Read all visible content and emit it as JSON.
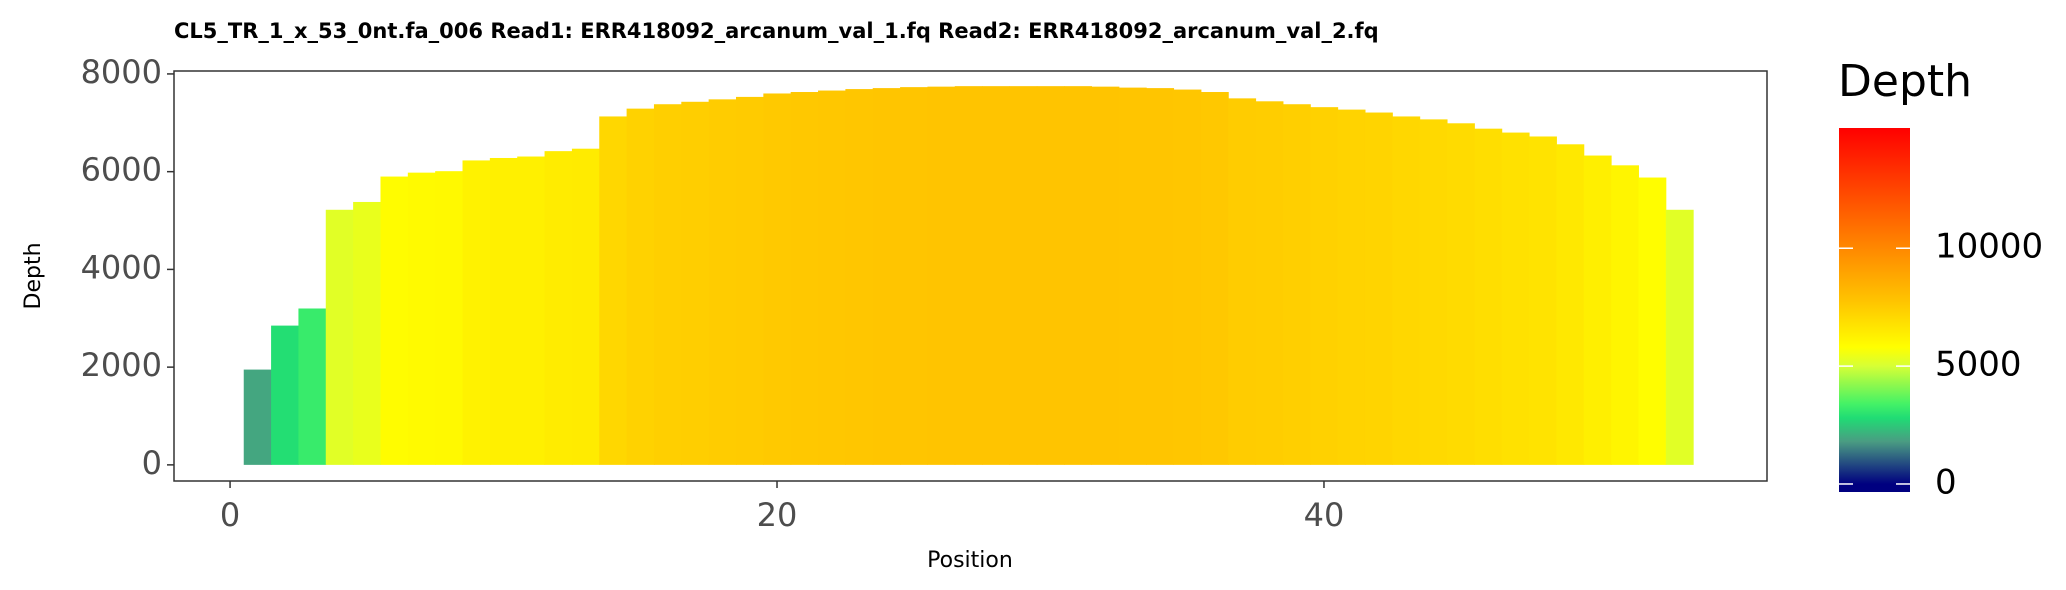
{
  "chart_data": {
    "type": "bar",
    "title": "CL5_TR_1_x_53_0nt.fa_006   Read1: ERR418092_arcanum_val_1.fq   Read2: ERR418092_arcanum_val_2.fq",
    "xlabel": "Position",
    "ylabel": "Depth",
    "x": [
      1,
      2,
      3,
      4,
      5,
      6,
      7,
      8,
      9,
      10,
      11,
      12,
      13,
      14,
      15,
      16,
      17,
      18,
      19,
      20,
      21,
      22,
      23,
      24,
      25,
      26,
      27,
      28,
      29,
      30,
      31,
      32,
      33,
      34,
      35,
      36,
      37,
      38,
      39,
      40,
      41,
      42,
      43,
      44,
      45,
      46,
      47,
      48,
      49,
      50,
      51,
      52,
      53
    ],
    "values": [
      1950,
      2850,
      3200,
      5220,
      5380,
      5900,
      5980,
      6010,
      6230,
      6280,
      6310,
      6420,
      6470,
      7130,
      7290,
      7380,
      7430,
      7480,
      7530,
      7600,
      7630,
      7660,
      7690,
      7710,
      7730,
      7740,
      7750,
      7750,
      7750,
      7750,
      7750,
      7740,
      7720,
      7710,
      7680,
      7630,
      7500,
      7440,
      7380,
      7320,
      7270,
      7210,
      7130,
      7070,
      6990,
      6880,
      6800,
      6720,
      6560,
      6330,
      6130,
      5880,
      5220
    ],
    "xlim": [
      -2.05,
      56.2
    ],
    "xticks": [
      0,
      20,
      40
    ],
    "ylim": [
      -330,
      8060
    ],
    "yticks": [
      0,
      2000,
      4000,
      6000,
      8000
    ],
    "legend_title": "Depth",
    "colorbar_lim": [
      -340,
      15100
    ],
    "colorbar_ticks": [
      0,
      5000,
      10000
    ],
    "color_stops": [
      {
        "value": 0,
        "color": "#000080"
      },
      {
        "value": 1800,
        "color": "#4a9c82"
      },
      {
        "value": 2800,
        "color": "#20dc74"
      },
      {
        "value": 3400,
        "color": "#44f266"
      },
      {
        "value": 5000,
        "color": "#d6ff35"
      },
      {
        "value": 5800,
        "color": "#ffff00"
      },
      {
        "value": 7750,
        "color": "#ffc400"
      },
      {
        "value": 10000,
        "color": "#ff8800"
      },
      {
        "value": 15100,
        "color": "#ff0000"
      }
    ]
  }
}
